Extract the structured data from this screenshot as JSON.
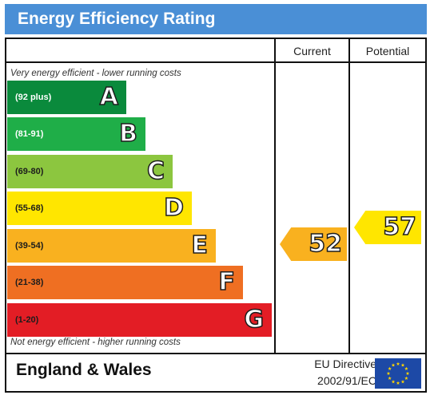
{
  "header": {
    "title": "Energy Efficiency Rating"
  },
  "columns": {
    "current": "Current",
    "potential": "Potential"
  },
  "captions": {
    "top": "Very energy efficient - lower running costs",
    "bottom": "Not energy efficient - higher running costs"
  },
  "bands": [
    {
      "range": "(92 plus)",
      "letter": "A",
      "color": "#0a8a3c"
    },
    {
      "range": "(81-91)",
      "letter": "B",
      "color": "#1fae48"
    },
    {
      "range": "(69-80)",
      "letter": "C",
      "color": "#8cc63f"
    },
    {
      "range": "(55-68)",
      "letter": "D",
      "color": "#ffe600"
    },
    {
      "range": "(39-54)",
      "letter": "E",
      "color": "#f9b11f"
    },
    {
      "range": "(21-38)",
      "letter": "F",
      "color": "#ef6f22"
    },
    {
      "range": "(1-20)",
      "letter": "G",
      "color": "#e31d25"
    }
  ],
  "ratings": {
    "current": {
      "value": "52",
      "band": "E",
      "color": "#f9b11f"
    },
    "potential": {
      "value": "57",
      "band": "D",
      "color": "#ffe600"
    }
  },
  "footer": {
    "country": "England & Wales",
    "directive_line1": "EU Directive",
    "directive_line2": "2002/91/EC"
  },
  "icons": {
    "eu_flag": "eu-flag-icon"
  },
  "colors": {
    "header_bg": "#4a8fd6",
    "eu_blue": "#1d49a6",
    "eu_star": "#ffd500"
  }
}
